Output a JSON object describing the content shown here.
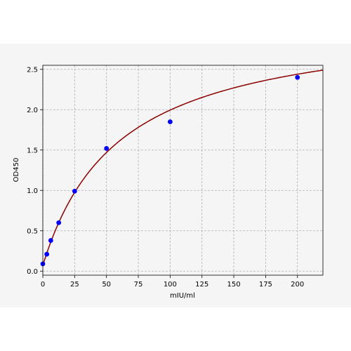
{
  "chart_data": {
    "type": "scatter",
    "xlabel": "mIU/ml",
    "ylabel": "OD450",
    "xlim": [
      0,
      220
    ],
    "ylim": [
      -0.05,
      2.55
    ],
    "xticks": [
      0,
      25,
      50,
      75,
      100,
      125,
      150,
      175,
      200
    ],
    "yticks": [
      0.0,
      0.5,
      1.0,
      1.5,
      2.0,
      2.5
    ],
    "xtick_labels": [
      "0",
      "25",
      "50",
      "75",
      "100",
      "125",
      "150",
      "175",
      "200"
    ],
    "ytick_labels": [
      "0.0",
      "0.5",
      "1.0",
      "1.5",
      "2.0",
      "2.5"
    ],
    "grid": true,
    "points": [
      {
        "x": 0,
        "y": 0.09
      },
      {
        "x": 3.13,
        "y": 0.21
      },
      {
        "x": 6.25,
        "y": 0.38
      },
      {
        "x": 12.5,
        "y": 0.6
      },
      {
        "x": 25,
        "y": 0.99
      },
      {
        "x": 50,
        "y": 1.52
      },
      {
        "x": 100,
        "y": 1.85
      },
      {
        "x": 200,
        "y": 2.4
      }
    ],
    "fit_curve": {
      "model": "4PL",
      "a": 0.07,
      "b": 1.0,
      "c": 60,
      "d": 3.15,
      "x_range": [
        0,
        220
      ]
    },
    "colors": {
      "points": "#0000ff",
      "curve": "#8b0000",
      "grid": "#b0b0b0",
      "background": "#f5f5f5"
    }
  }
}
